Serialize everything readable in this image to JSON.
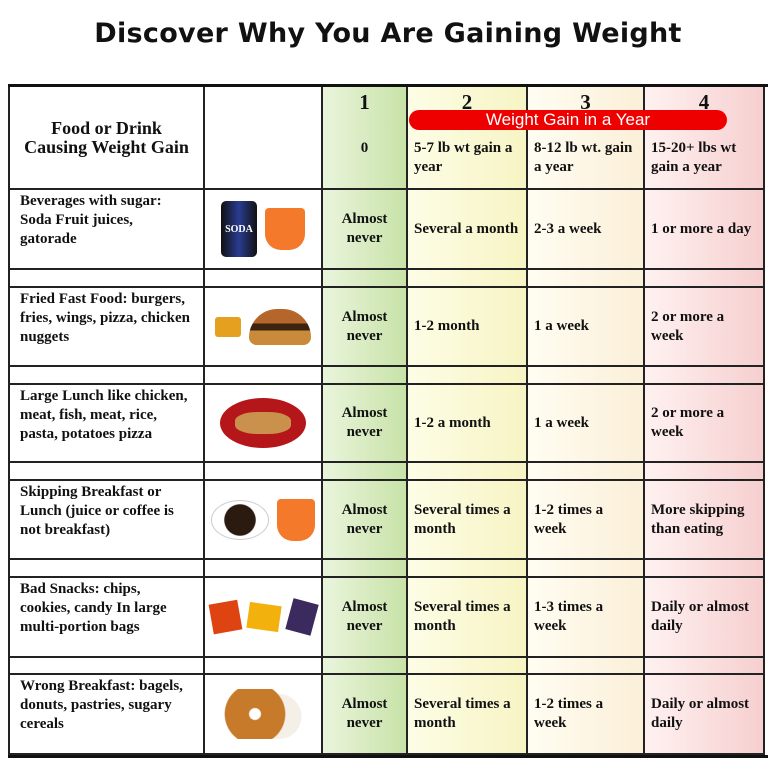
{
  "title": "Discover Why You Are Gaining Weight",
  "header": {
    "food_label": "Food or Drink Causing Weight Gain",
    "banner": "Weight Gain in a Year",
    "columns": [
      {
        "num": "1",
        "desc": "0"
      },
      {
        "num": "2",
        "desc": "5-7 lb wt gain  a year"
      },
      {
        "num": "3",
        "desc": "8-12 lb wt. gain a year"
      },
      {
        "num": "4",
        "desc": "15-20+  lbs wt gain a year"
      }
    ]
  },
  "rows": [
    {
      "food": "Beverages with sugar: Soda Fruit juices, gatorade",
      "image": "soda-can-and-juice",
      "cells": [
        "Almost never",
        "Several a month",
        "2-3 a week",
        "1 or more a day"
      ]
    },
    {
      "food": "Fried Fast Food: burgers, fries, wings, pizza, chicken nuggets",
      "image": "burger-and-fries",
      "cells": [
        "Almost never",
        "1-2 month",
        "1 a week",
        "2 or more a week"
      ]
    },
    {
      "food": "Large Lunch like chicken, meat, fish, meat, rice, pasta, potatoes pizza",
      "image": "lunch-plate",
      "cells": [
        "Almost never",
        "1-2 a month",
        "1 a week",
        "2 or more a week"
      ]
    },
    {
      "food": "Skipping Breakfast or Lunch (juice or coffee is not breakfast)",
      "image": "coffee-and-juice",
      "cells": [
        "Almost never",
        "Several times a month",
        "1-2 times a week",
        "More skipping than eating"
      ]
    },
    {
      "food": "Bad Snacks: chips, cookies, candy In large multi-portion bags",
      "image": "candy-bars",
      "cells": [
        "Almost never",
        "Several times a month",
        "1-3 times a week",
        "Daily or almost daily"
      ]
    },
    {
      "food": "Wrong Breakfast: bagels, donuts, pastries, sugary cereals",
      "image": "bagel",
      "cells": [
        "Almost never",
        "Several times a month",
        "1-2 times a week",
        "Daily or almost daily"
      ]
    }
  ],
  "colors": {
    "col1": "#c8e2a8",
    "col2": "#f7f4c4",
    "col3": "#fbefd8",
    "col4": "#f6cfcf",
    "banner": "#e00000"
  }
}
